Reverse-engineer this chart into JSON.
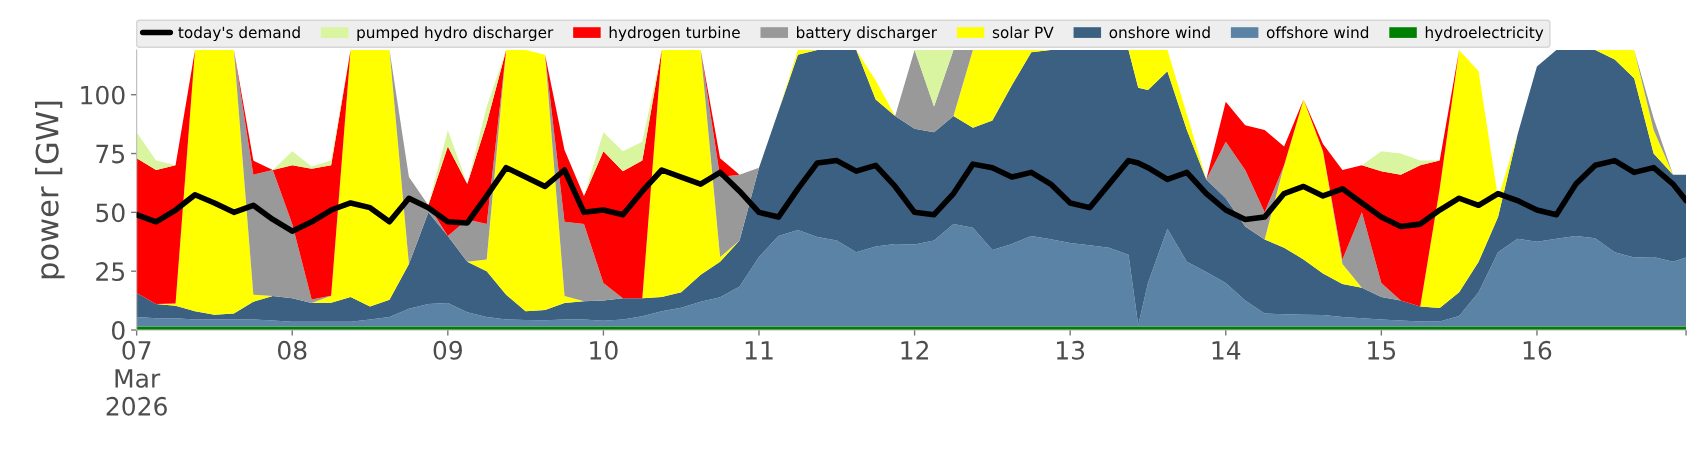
{
  "chart_data": {
    "type": "area",
    "stacked": true,
    "ylabel": "power [GW]",
    "x": [
      "2026-03-07T00:00",
      "2026-03-07T03:00",
      "2026-03-07T06:00",
      "2026-03-07T09:00",
      "2026-03-07T12:00",
      "2026-03-07T15:00",
      "2026-03-07T18:00",
      "2026-03-07T21:00",
      "2026-03-08T00:00",
      "2026-03-08T03:00",
      "2026-03-08T06:00",
      "2026-03-08T09:00",
      "2026-03-08T12:00",
      "2026-03-08T15:00",
      "2026-03-08T18:00",
      "2026-03-08T21:00",
      "2026-03-09T00:00",
      "2026-03-09T03:00",
      "2026-03-09T06:00",
      "2026-03-09T09:00",
      "2026-03-09T12:00",
      "2026-03-09T15:00",
      "2026-03-09T18:00",
      "2026-03-09T21:00",
      "2026-03-10T00:00",
      "2026-03-10T03:00",
      "2026-03-10T06:00",
      "2026-03-10T09:00",
      "2026-03-10T12:00",
      "2026-03-10T15:00",
      "2026-03-10T18:00",
      "2026-03-10T21:00",
      "2026-03-11T00:00",
      "2026-03-11T03:00",
      "2026-03-11T06:00",
      "2026-03-11T09:00",
      "2026-03-11T12:00",
      "2026-03-11T15:00",
      "2026-03-11T18:00",
      "2026-03-11T21:00",
      "2026-03-12T00:00",
      "2026-03-12T03:00",
      "2026-03-12T06:00",
      "2026-03-12T09:00",
      "2026-03-12T12:00",
      "2026-03-12T15:00",
      "2026-03-12T18:00",
      "2026-03-12T21:00",
      "2026-03-13T00:00",
      "2026-03-13T03:00",
      "2026-03-13T06:00",
      "2026-03-13T09:00",
      "2026-03-13T10:30",
      "2026-03-13T12:00",
      "2026-03-13T15:00",
      "2026-03-13T18:00",
      "2026-03-13T21:00",
      "2026-03-14T00:00",
      "2026-03-14T03:00",
      "2026-03-14T06:00",
      "2026-03-14T09:00",
      "2026-03-14T12:00",
      "2026-03-14T15:00",
      "2026-03-14T18:00",
      "2026-03-14T21:00",
      "2026-03-15T00:00",
      "2026-03-15T03:00",
      "2026-03-15T06:00",
      "2026-03-15T09:00",
      "2026-03-15T12:00",
      "2026-03-15T15:00",
      "2026-03-15T18:00",
      "2026-03-15T21:00",
      "2026-03-16T00:00",
      "2026-03-16T03:00",
      "2026-03-16T06:00",
      "2026-03-16T09:00",
      "2026-03-16T12:00",
      "2026-03-16T15:00",
      "2026-03-16T18:00",
      "2026-03-16T21:00",
      "2026-03-16T23:00"
    ],
    "series": [
      {
        "name": "hydroelectricity",
        "color": "#008000",
        "values": [
          1.5,
          1.5,
          1.5,
          1.5,
          1.5,
          1.5,
          1.5,
          1.5,
          1.5,
          1.5,
          1.5,
          1.5,
          1.5,
          1.5,
          1.5,
          1.5,
          1.5,
          1.5,
          1.5,
          1.5,
          1.5,
          1.5,
          1.5,
          1.5,
          1.5,
          1.5,
          1.5,
          1.5,
          1.5,
          1.5,
          1.5,
          1.5,
          1.5,
          1.5,
          1.5,
          1.5,
          1.5,
          1.5,
          1.5,
          1.5,
          1.5,
          1.5,
          1.5,
          1.5,
          1.5,
          1.5,
          1.5,
          1.5,
          1.5,
          1.5,
          1.5,
          1.5,
          1.5,
          1.5,
          1.5,
          1.5,
          1.5,
          1.5,
          1.5,
          1.5,
          1.5,
          1.5,
          1.5,
          1.5,
          1.5,
          1.5,
          1.5,
          1.5,
          1.5,
          1.5,
          1.5,
          1.5,
          1.5,
          1.5,
          1.5,
          1.5,
          1.5,
          1.5,
          1.5,
          1.5,
          1.5,
          1.5
        ]
      },
      {
        "name": "offshore wind",
        "color": "#5b83a5",
        "values": [
          4,
          3.5,
          3.5,
          3,
          3,
          3,
          3,
          2.5,
          2,
          2,
          2,
          2,
          3,
          4,
          7.5,
          9.5,
          10,
          6,
          4,
          3,
          2.7,
          2.6,
          3,
          3,
          2.4,
          3,
          4.3,
          6.5,
          8,
          10.5,
          12.4,
          17,
          29.5,
          38.5,
          41,
          38,
          36.5,
          31.5,
          34,
          35,
          34.8,
          36.5,
          43.5,
          42,
          32.5,
          35.1,
          38.5,
          37.1,
          35.5,
          34.5,
          33.5,
          30.5,
          0.5,
          18.5,
          41.5,
          27.5,
          23.2,
          18.5,
          11,
          5.5,
          5.2,
          5,
          4.9,
          4,
          3.5,
          3,
          2.5,
          2.1,
          2.1,
          4.5,
          14.5,
          31.5,
          37.3,
          36,
          37.3,
          38.5,
          37.5,
          31.5,
          29.3,
          29.5,
          27.5,
          29.3
        ]
      },
      {
        "name": "onshore wind",
        "color": "#3b6082",
        "values": [
          10.2,
          6,
          5.3,
          3.5,
          2,
          2.5,
          7.5,
          10.5,
          10,
          8,
          8.1,
          10.5,
          5.5,
          7.4,
          19,
          39,
          28.5,
          21.5,
          19.5,
          10.5,
          3.8,
          4.4,
          7,
          7.7,
          8.6,
          9,
          7.7,
          6,
          6.5,
          11.5,
          15.1,
          19.5,
          38,
          53,
          74.5,
          79.5,
          81,
          86,
          62.5,
          54.5,
          49.2,
          46,
          46,
          42.5,
          55,
          67.4,
          78,
          80.4,
          82,
          83,
          84,
          87,
          101,
          82,
          67,
          56,
          39.3,
          36,
          31.5,
          31.5,
          28.3,
          23.5,
          17.6,
          14,
          13,
          9.5,
          8.5,
          6.4,
          5.7,
          10,
          13,
          15,
          44.2,
          74.5,
          80.2,
          79,
          80,
          82,
          76.2,
          44,
          37,
          35.2
        ]
      },
      {
        "name": "solar PV",
        "color": "#ffff00",
        "values": [
          null,
          0,
          1,
          111,
          112.5,
          112,
          3,
          0,
          0,
          0,
          3,
          105,
          109,
          106.1,
          0,
          0,
          0,
          0,
          5,
          104,
          111,
          108.5,
          3,
          0,
          0,
          0,
          0,
          105,
          103,
          95.5,
          2,
          0,
          0,
          0,
          2,
          0,
          0,
          0,
          8,
          0,
          0,
          0,
          0,
          33,
          30,
          15,
          1,
          0,
          0,
          0,
          0,
          0,
          16,
          17,
          9,
          6.6,
          0,
          0,
          0,
          0,
          35,
          68,
          52,
          8.5,
          0,
          0,
          0,
          0,
          50.7,
          103,
          81,
          8,
          0,
          0,
          0,
          0,
          0,
          4,
          12,
          10,
          0,
          null
        ]
      },
      {
        "name": "battery discharger",
        "color": "#999999",
        "values": [
          null,
          null,
          null,
          null,
          null,
          0,
          51,
          53.5,
          31.5,
          1.5,
          0,
          0,
          0,
          0,
          37,
          3,
          0,
          18,
          15,
          0,
          0,
          0,
          31.5,
          32.8,
          7.5,
          0,
          0,
          0,
          0,
          0,
          34,
          28,
          0,
          0,
          0,
          0,
          0,
          0,
          0,
          0,
          33.5,
          11,
          28,
          0,
          0,
          0,
          0,
          0,
          0,
          0,
          0,
          0,
          0,
          0,
          0,
          0,
          0,
          24,
          24,
          11.5,
          0,
          0,
          0,
          2,
          32,
          6,
          0,
          0,
          0,
          0,
          0,
          0,
          0,
          0,
          0,
          0,
          0,
          0,
          0,
          5,
          0,
          null
        ]
      },
      {
        "name": "hydrogen turbine",
        "color": "#ff0000",
        "values": [
          57.3,
          57,
          58.7,
          0,
          0,
          0,
          6,
          0,
          25,
          55.5,
          55.4,
          0,
          0,
          0,
          0,
          0,
          38,
          15,
          43,
          0,
          0,
          0,
          30.5,
          12,
          56,
          54,
          58.5,
          0,
          0,
          0,
          8,
          0,
          0,
          0,
          0,
          0,
          0,
          0,
          0,
          0,
          0,
          0,
          0,
          0,
          0,
          0,
          0,
          0,
          0,
          0,
          0,
          0,
          0,
          0,
          0,
          0,
          0,
          17,
          19,
          35,
          8,
          0,
          3,
          38,
          20,
          47.5,
          53.5,
          60,
          12,
          0,
          null,
          null,
          null,
          null,
          null,
          null,
          null,
          null,
          null,
          null,
          null,
          null
        ]
      },
      {
        "name": "pumped hydro discharger",
        "color": "#d9f5a0",
        "values": [
          11,
          4,
          0,
          0,
          0,
          0,
          0,
          0,
          6,
          1,
          2,
          0,
          0,
          0,
          0,
          0,
          7,
          0,
          7,
          0,
          0,
          0,
          0,
          0,
          8,
          8.5,
          8,
          0,
          0,
          0,
          0,
          0,
          0,
          0,
          0,
          0,
          0,
          0,
          0,
          0,
          0,
          24,
          0,
          0,
          0,
          0,
          0,
          0,
          0,
          0,
          0,
          0,
          0,
          0,
          0,
          0,
          0,
          0,
          0,
          0,
          0,
          0,
          0,
          0,
          0,
          8.5,
          9,
          2,
          0,
          null,
          null,
          null,
          null,
          null,
          null,
          null,
          null,
          null,
          null,
          null,
          null,
          null
        ]
      },
      {
        "name": "today's demand",
        "type": "line",
        "color": "#000000",
        "values": [
          49,
          46,
          51,
          57.5,
          54,
          50,
          53,
          47,
          42,
          46,
          51,
          54,
          52,
          46,
          56,
          52,
          46,
          45.5,
          57,
          69,
          65,
          61,
          68,
          50,
          51,
          49,
          59,
          68,
          65,
          62,
          67,
          59,
          50,
          48,
          60,
          71,
          72,
          67.5,
          70,
          61,
          50,
          49,
          58,
          70.5,
          69,
          65,
          67,
          62,
          54,
          52,
          62,
          72,
          71,
          69,
          64,
          67,
          58,
          51,
          47,
          48,
          58,
          61,
          57,
          60,
          54,
          48,
          44,
          45,
          51,
          56,
          53,
          58,
          55,
          51,
          49,
          62,
          70,
          72,
          67,
          69,
          62,
          55
        ]
      }
    ],
    "xlim": [
      "2026-03-07T00:00",
      "2026-03-16T23:00"
    ],
    "xticks": [
      {
        "value": "2026-03-07",
        "label": "07\nMar\n2026"
      },
      {
        "value": "2026-03-08",
        "label": "08"
      },
      {
        "value": "2026-03-09",
        "label": "09"
      },
      {
        "value": "2026-03-10",
        "label": "10"
      },
      {
        "value": "2026-03-11",
        "label": "11"
      },
      {
        "value": "2026-03-12",
        "label": "12"
      },
      {
        "value": "2026-03-13",
        "label": "13"
      },
      {
        "value": "2026-03-14",
        "label": "14"
      },
      {
        "value": "2026-03-15",
        "label": "15"
      },
      {
        "value": "2026-03-16",
        "label": "16"
      },
      {
        "value": "2026-03-16T23:00",
        "label": null
      }
    ],
    "ylim": [
      0,
      119
    ],
    "yticks": [
      0,
      25,
      50,
      75,
      100
    ],
    "legend": "top left"
  }
}
